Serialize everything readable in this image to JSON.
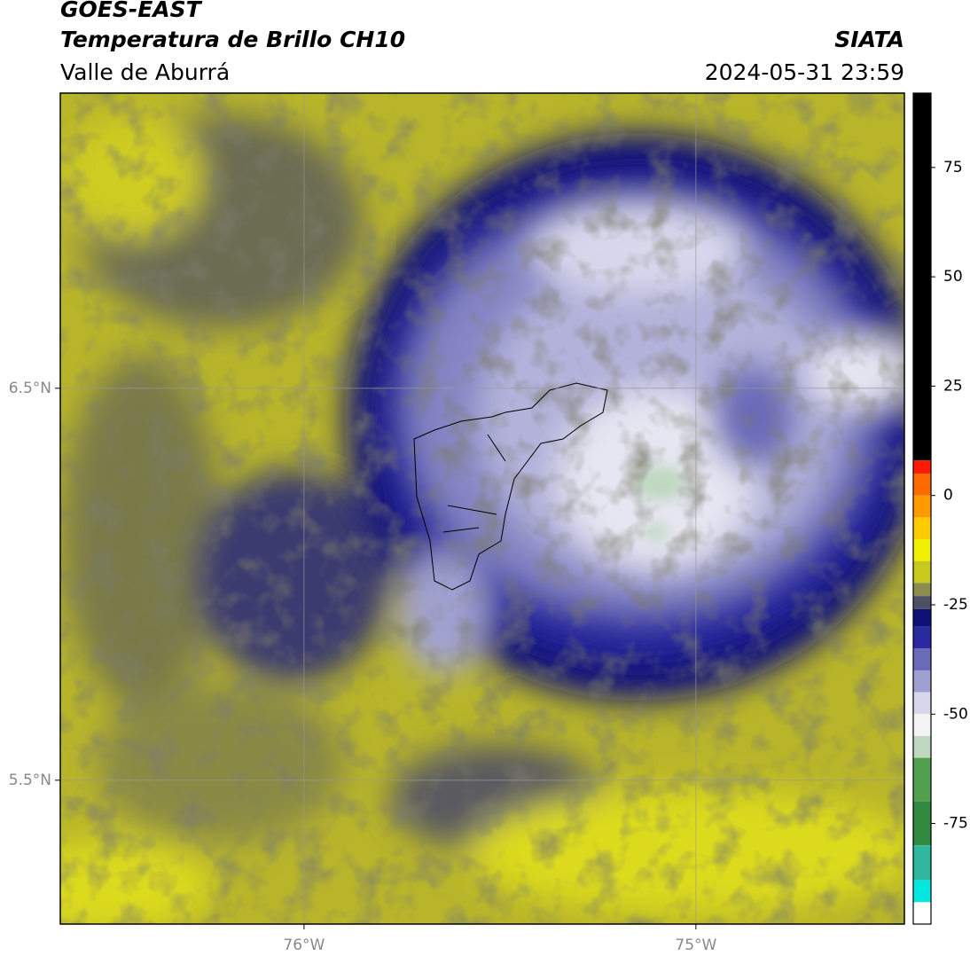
{
  "map": {
    "title": "GOES-EAST",
    "subtitle": "Temperatura de Brillo CH10",
    "region": "Valle de Aburrá",
    "source": "SIATA",
    "datetime": "2024-05-31 23:59",
    "xlim": [
      -76.622,
      -74.468
    ],
    "ylim": [
      5.133,
      7.253
    ],
    "xticks": [
      {
        "value": -76,
        "label": "76°W"
      },
      {
        "value": -75,
        "label": "75°W"
      }
    ],
    "yticks": [
      {
        "value": 6.5,
        "label": "6.5°N"
      },
      {
        "value": 5.5,
        "label": "5.5°N"
      }
    ],
    "grid": true,
    "colorbar": {
      "lim": [
        -98,
        92
      ],
      "ticks": [
        75,
        50,
        25,
        0,
        -25,
        -50,
        -75
      ],
      "segments": [
        {
          "from": 8,
          "to": 92,
          "color": "#000000"
        },
        {
          "from": 5,
          "to": 8,
          "color": "#ff1a00"
        },
        {
          "from": 0,
          "to": 5,
          "color": "#ff6a00"
        },
        {
          "from": -5,
          "to": 0,
          "color": "#ff9a00"
        },
        {
          "from": -10,
          "to": -5,
          "color": "#ffcc00"
        },
        {
          "from": -15,
          "to": -10,
          "color": "#f2f200"
        },
        {
          "from": -20,
          "to": -15,
          "color": "#c8c81e"
        },
        {
          "from": -23,
          "to": -20,
          "color": "#8c8c50"
        },
        {
          "from": -26,
          "to": -23,
          "color": "#505064"
        },
        {
          "from": -30,
          "to": -26,
          "color": "#10107a"
        },
        {
          "from": -35,
          "to": -30,
          "color": "#2a2aa0"
        },
        {
          "from": -40,
          "to": -35,
          "color": "#6a6ab8"
        },
        {
          "from": -45,
          "to": -40,
          "color": "#a0a0d0"
        },
        {
          "from": -50,
          "to": -45,
          "color": "#d8d8ec"
        },
        {
          "from": -55,
          "to": -50,
          "color": "#f4f4f4"
        },
        {
          "from": -60,
          "to": -55,
          "color": "#c0d8c0"
        },
        {
          "from": -70,
          "to": -60,
          "color": "#50a050"
        },
        {
          "from": -80,
          "to": -70,
          "color": "#308a40"
        },
        {
          "from": -88,
          "to": -80,
          "color": "#30b8a0"
        },
        {
          "from": -93,
          "to": -88,
          "color": "#00e8e0"
        },
        {
          "from": -98,
          "to": -93,
          "color": "#ffffff"
        }
      ]
    }
  }
}
